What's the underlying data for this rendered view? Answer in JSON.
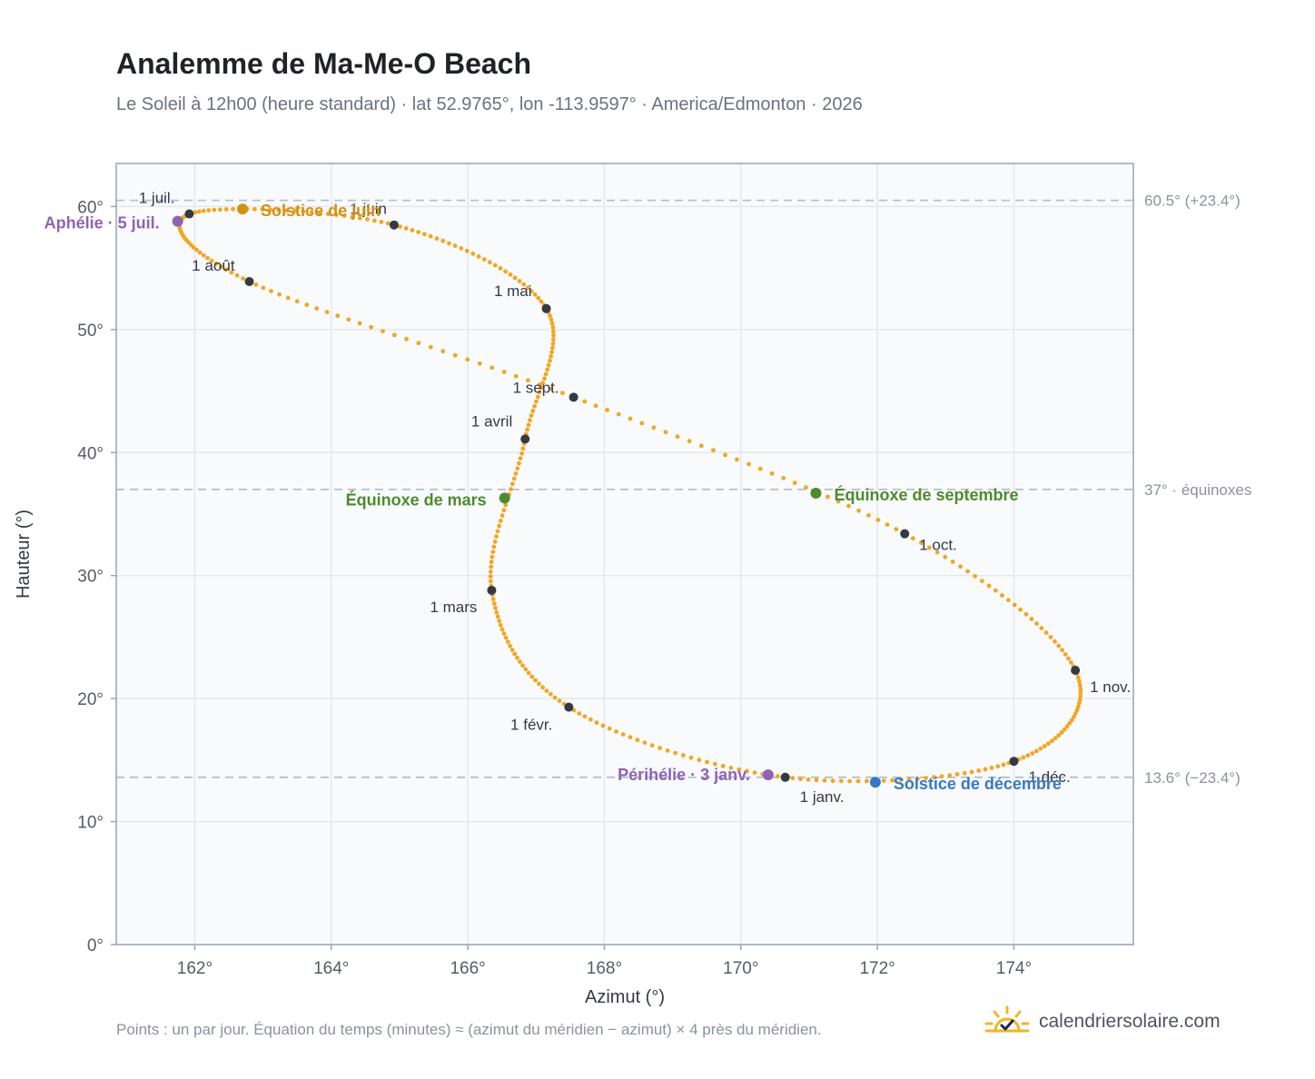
{
  "header": {
    "title": "Analemme de Ma-Me-O Beach",
    "subtitle": "Le Soleil à 12h00 (heure standard) · lat 52.9765°, lon -113.9597° · America/Edmonton · 2026"
  },
  "footer": {
    "note": "Points : un par jour. Équation du temps (minutes) ≈ (azimut du méridien − azimut) × 4 près du méridien.",
    "brand": "calendriersolaire.com",
    "brand_icon": "sun-check-icon"
  },
  "colors": {
    "curve": "#f2a623",
    "month_dot": "#333a44",
    "june_solstice": "#d4900e",
    "december_solstice": "#3a78c2",
    "equinox": "#4f8a2c",
    "aphelion_perihelion": "#8e63b5",
    "grid": "#e4e8ee",
    "plot_bg": "#f8fafc",
    "frame": "#9aa5b4"
  },
  "chart_data": {
    "type": "scatter",
    "title": "Analemme de Ma-Me-O Beach",
    "xlabel": "Azimut (°)",
    "ylabel": "Hauteur (°)",
    "xlim": [
      160.85,
      175.75
    ],
    "ylim": [
      0,
      63.5
    ],
    "xticks": [
      162,
      164,
      166,
      168,
      170,
      172,
      174
    ],
    "xtick_labels": [
      "162°",
      "164°",
      "166°",
      "168°",
      "170°",
      "172°",
      "174°"
    ],
    "yticks": [
      0,
      10,
      20,
      30,
      40,
      50,
      60
    ],
    "ytick_labels": [
      "0°",
      "10°",
      "20°",
      "30°",
      "40°",
      "50°",
      "60°"
    ],
    "grid": true,
    "reference_lines": [
      {
        "y": 60.5,
        "label": "60.5° (+23.4°)"
      },
      {
        "y": 37.0,
        "label": "37° · équinoxes"
      },
      {
        "y": 13.6,
        "label": "13.6° (−23.4°)"
      }
    ],
    "month_points": [
      {
        "label": "1 janv.",
        "azimuth": 170.65,
        "altitude": 13.6
      },
      {
        "label": "1 févr.",
        "azimuth": 167.48,
        "altitude": 19.3
      },
      {
        "label": "1 mars",
        "azimuth": 166.35,
        "altitude": 28.8
      },
      {
        "label": "1 avril",
        "azimuth": 166.84,
        "altitude": 41.1
      },
      {
        "label": "1 mai",
        "azimuth": 167.15,
        "altitude": 51.7
      },
      {
        "label": "1 juin",
        "azimuth": 164.92,
        "altitude": 58.5
      },
      {
        "label": "1 juil.",
        "azimuth": 161.92,
        "altitude": 59.4
      },
      {
        "label": "1 août",
        "azimuth": 162.8,
        "altitude": 53.9
      },
      {
        "label": "1 sept.",
        "azimuth": 167.55,
        "altitude": 44.5
      },
      {
        "label": "1 oct.",
        "azimuth": 172.4,
        "altitude": 33.4
      },
      {
        "label": "1 nov.",
        "azimuth": 174.9,
        "altitude": 22.3
      },
      {
        "label": "1 déc.",
        "azimuth": 174.0,
        "altitude": 14.9
      }
    ],
    "events": [
      {
        "label": "Solstice de juin",
        "azimuth": 162.7,
        "altitude": 59.8
      },
      {
        "label": "Solstice de décembre",
        "azimuth": 171.97,
        "altitude": 13.2
      },
      {
        "label": "Équinoxe de mars",
        "azimuth": 166.54,
        "altitude": 36.3
      },
      {
        "label": "Équinoxe de septembre",
        "azimuth": 171.1,
        "altitude": 36.7
      },
      {
        "label": "Aphélie · 5 juil.",
        "azimuth": 161.75,
        "altitude": 58.8
      },
      {
        "label": "Périhélie · 3 janv.",
        "azimuth": 170.4,
        "altitude": 13.8
      }
    ]
  }
}
